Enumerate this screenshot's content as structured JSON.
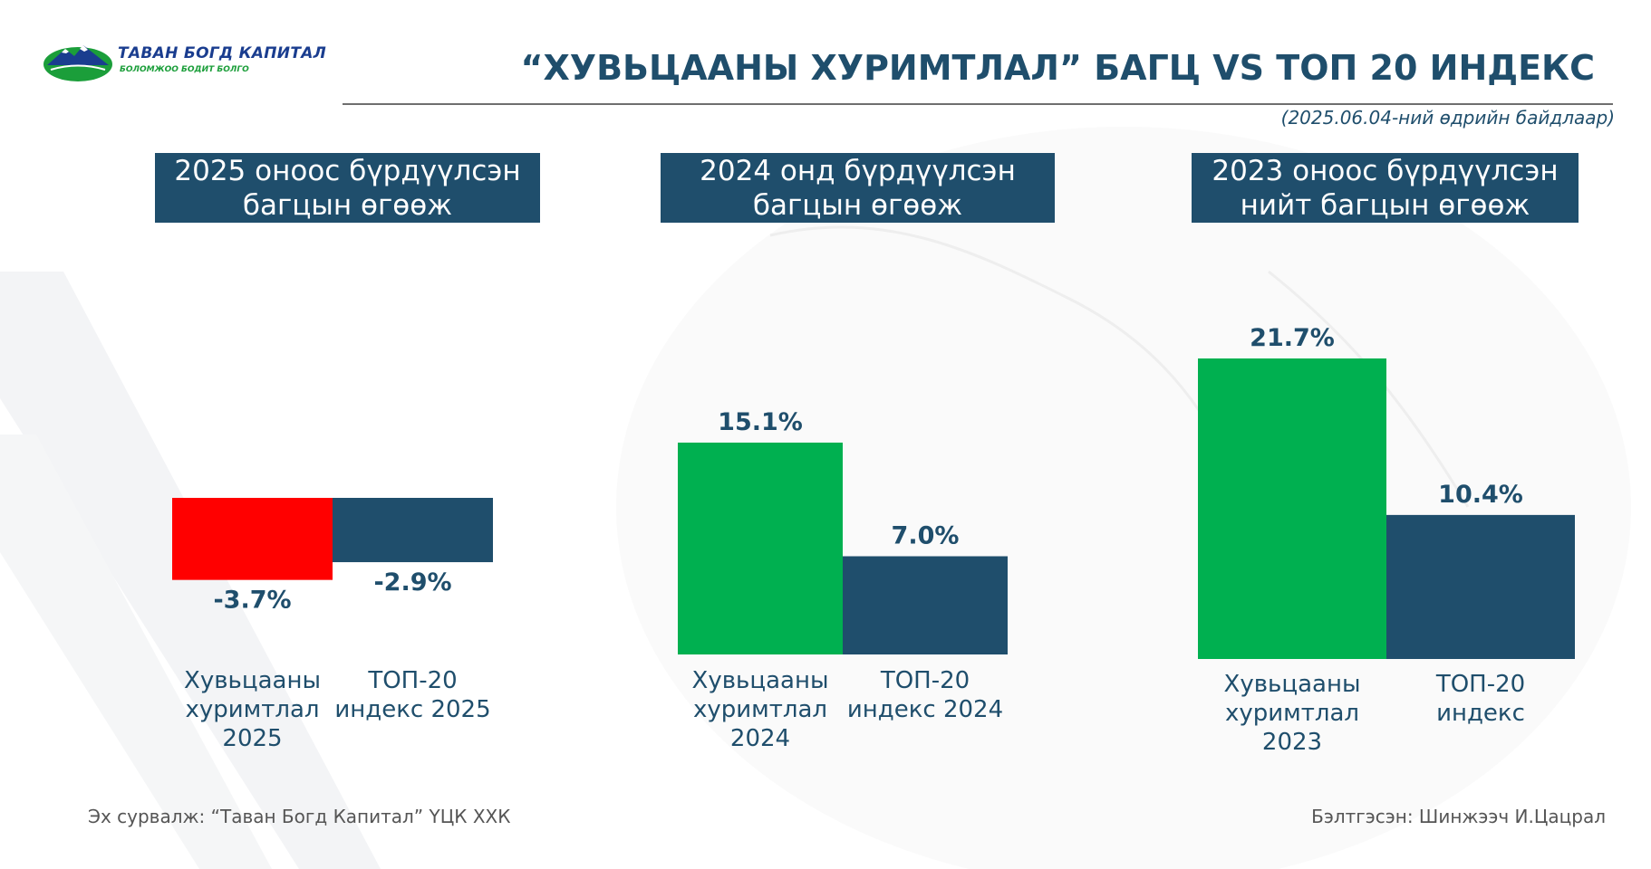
{
  "logo": {
    "name": "ТАВАН БОГД КАПИТАЛ",
    "tagline": "БОЛОМЖОО БОДИТ БОЛГО"
  },
  "title": "“ХУВЬЦААНЫ ХУРИМТЛАЛ” БАГЦ VS ТОП 20 ИНДЕКС",
  "as_of": "(2025.06.04-ний өдрийн байдлаар)",
  "colors": {
    "navy": "#1f4e6c",
    "green": "#00b050",
    "red": "#ff0000"
  },
  "chart_data": [
    {
      "type": "bar",
      "title": [
        "2025 оноос бүрдүүлсэн",
        "багцын өгөөж"
      ],
      "categories": [
        [
          "Хувьцааны",
          "хуримтлал",
          "2025"
        ],
        [
          "ТОП-20",
          "индекс 2025"
        ]
      ],
      "values": [
        -3.7,
        -2.9
      ],
      "value_labels": [
        "-3.7%",
        "-2.9%"
      ],
      "colors": [
        "#ff0000",
        "#1f4e6c"
      ]
    },
    {
      "type": "bar",
      "title": [
        "2024 онд бүрдүүлсэн",
        "багцын өгөөж"
      ],
      "categories": [
        [
          "Хувьцааны",
          "хуримтлал",
          "2024"
        ],
        [
          "ТОП-20",
          "индекс 2024"
        ]
      ],
      "values": [
        15.1,
        7.0
      ],
      "value_labels": [
        "15.1%",
        "7.0%"
      ],
      "colors": [
        "#00b050",
        "#1f4e6c"
      ]
    },
    {
      "type": "bar",
      "title": [
        "2023 оноос бүрдүүлсэн",
        "нийт багцын өгөөж"
      ],
      "categories": [
        [
          "Хувьцааны",
          "хуримтлал",
          "2023"
        ],
        [
          "ТОП-20",
          "индекс"
        ]
      ],
      "values": [
        21.7,
        10.4
      ],
      "value_labels": [
        "21.7%",
        "10.4%"
      ],
      "colors": [
        "#00b050",
        "#1f4e6c"
      ]
    }
  ],
  "footer": {
    "source": "Эх сурвалж: “Таван Богд Капитал” ҮЦК ХХК",
    "prepared_by": "Бэлтгэсэн: Шинжээч И.Цацрал"
  }
}
